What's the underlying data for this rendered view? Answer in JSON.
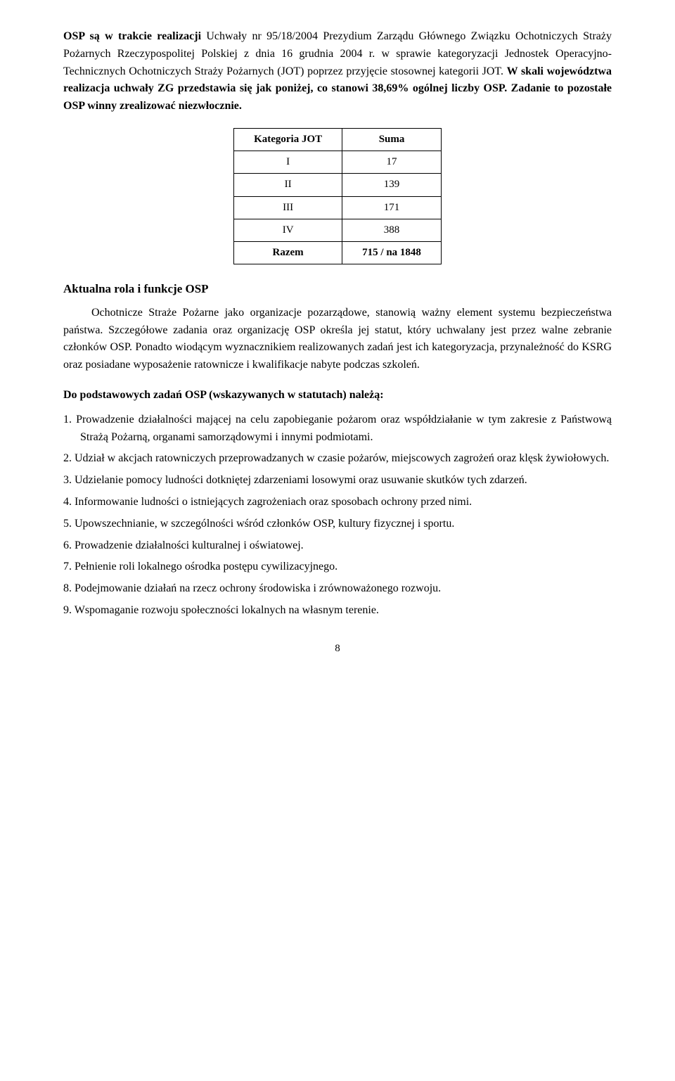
{
  "intro": {
    "p1_a": "OSP są w trakcie realizacji",
    "p1_b": " Uchwały nr 95/18/2004 Prezydium Zarządu Głównego Związku Ochotniczych Straży Pożarnych Rzeczypospolitej Polskiej z dnia 16 grudnia 2004 r. w sprawie kategoryzacji Jednostek Operacyjno-Technicznych Ochotniczych Straży Pożarnych (JOT) poprzez przyjęcie stosownej kategorii JOT. ",
    "p1_c": "W skali województwa realizacja uchwały ZG przedstawia się jak poniżej, co stanowi 38,69% ogólnej liczby OSP. Zadanie to pozostałe OSP winny zrealizować niezwłocznie."
  },
  "jot_table": {
    "col1": "Kategoria JOT",
    "col2": "Suma",
    "rows": [
      {
        "cat": "I",
        "sum": "17"
      },
      {
        "cat": "II",
        "sum": "139"
      },
      {
        "cat": "III",
        "sum": "171"
      },
      {
        "cat": "IV",
        "sum": "388"
      },
      {
        "cat": "Razem",
        "sum": "715 / na 1848"
      }
    ]
  },
  "role": {
    "heading": "Aktualna rola i funkcje OSP",
    "para": "Ochotnicze Straże Pożarne jako organizacje pozarządowe, stanowią ważny element systemu bezpieczeństwa państwa. Szczegółowe zadania oraz organizację OSP określa jej statut, który uchwalany jest przez walne zebranie członków OSP. Ponadto wiodącym wyznacznikiem realizowanych zadań jest ich kategoryzacja, przynależność do KSRG oraz posiadane wyposażenie ratownicze i kwalifikacje nabyte podczas szkoleń."
  },
  "tasks": {
    "heading": "Do podstawowych zadań OSP (wskazywanych w statutach) należą:",
    "items": [
      "Prowadzenie działalności mającej na celu zapobieganie pożarom oraz współdziałanie w tym zakresie z Państwową Strażą Pożarną, organami samorządowymi i innymi podmiotami.",
      "Udział w akcjach ratowniczych przeprowadzanych w czasie pożarów, miejscowych zagrożeń oraz klęsk żywiołowych.",
      "Udzielanie pomocy ludności dotkniętej zdarzeniami losowymi oraz usuwanie skutków tych zdarzeń.",
      "Informowanie ludności o istniejących zagrożeniach oraz sposobach ochrony przed nimi.",
      "Upowszechnianie, w szczególności wśród członków OSP, kultury fizycznej i sportu.",
      "Prowadzenie działalności kulturalnej i oświatowej.",
      "Pełnienie roli lokalnego ośrodka postępu cywilizacyjnego.",
      "Podejmowanie działań na rzecz ochrony środowiska i zrównoważonego rozwoju.",
      "Wspomaganie rozwoju społeczności lokalnych na własnym terenie."
    ]
  },
  "page_number": "8"
}
